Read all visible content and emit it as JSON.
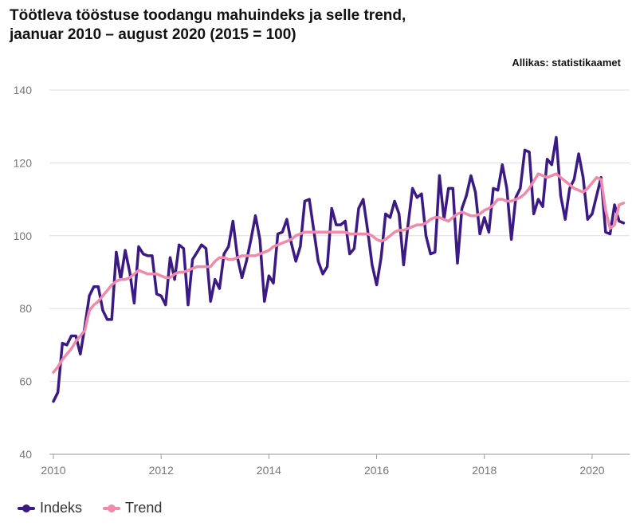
{
  "title_line1": "Töötleva tööstuse toodangu mahuindeks ja selle trend,",
  "title_line2": "jaanuar 2010 – august 2020 (2015 = 100)",
  "source": "Allikas: statistikaamet",
  "colors": {
    "indeks": "#3b1a86",
    "trend": "#f08aa8",
    "grid": "#dddddd"
  },
  "chart_data": {
    "type": "line",
    "title": "Töötleva tööstuse toodangu mahuindeks ja selle trend, jaanuar 2010 – august 2020 (2015 = 100)",
    "xlabel": "",
    "ylabel": "",
    "x_start": "2010-01",
    "x_frequency": "monthly",
    "ylim": [
      40,
      140
    ],
    "yticks": [
      "40",
      "60",
      "80",
      "100",
      "120",
      "140"
    ],
    "xticks": [
      "2010",
      "2012",
      "2014",
      "2016",
      "2018",
      "2020"
    ],
    "grid": true,
    "legend_position": "bottom-left",
    "series": [
      {
        "name": "Indeks",
        "values": [
          54.5,
          57,
          70.5,
          70,
          72.5,
          72.5,
          67.5,
          75,
          83.5,
          86,
          86,
          79.5,
          77,
          77,
          95.5,
          88,
          96,
          90,
          81.5,
          97,
          95,
          94.5,
          94.5,
          84,
          83.5,
          81,
          94,
          88,
          97.5,
          96.5,
          81,
          93.5,
          95.5,
          97.5,
          96.5,
          82,
          88,
          85.5,
          95,
          97,
          104,
          94,
          88.5,
          93,
          99,
          105.5,
          99,
          82,
          89,
          87,
          100.5,
          101,
          104.5,
          98,
          93,
          97,
          109.5,
          110,
          101.5,
          93,
          89.5,
          91.5,
          107.5,
          103,
          103,
          104,
          95,
          96.5,
          107.5,
          110,
          101.5,
          92,
          86.5,
          94,
          106,
          105,
          109.5,
          106,
          92,
          103,
          113,
          110.5,
          111.5,
          100,
          95,
          95.5,
          116.5,
          104.5,
          113,
          113,
          92.5,
          107.5,
          111,
          116.5,
          112,
          100.5,
          105,
          101,
          113,
          112.5,
          119.5,
          113,
          99,
          110.5,
          113,
          123.5,
          123,
          106,
          110,
          108,
          121,
          119.5,
          127,
          111,
          104.5,
          113,
          115.5,
          122.5,
          116,
          104.5,
          106,
          111,
          116,
          101,
          100.5,
          108.5,
          104,
          103.5
        ]
      },
      {
        "name": "Trend",
        "values": [
          62.5,
          64,
          66,
          67.5,
          69,
          71,
          72.5,
          74,
          79.5,
          81,
          82,
          83.5,
          85,
          86.5,
          87.5,
          88,
          88,
          88.5,
          89.5,
          90.5,
          90,
          89.5,
          89.5,
          89.5,
          89,
          88.5,
          88.5,
          89.5,
          90,
          90,
          90.5,
          91,
          91.5,
          91.5,
          91.5,
          91.5,
          93,
          94,
          94,
          93.5,
          93.5,
          94,
          94.5,
          94.5,
          94.5,
          94.5,
          95,
          95.5,
          96,
          97,
          97.5,
          98,
          98.5,
          99,
          100,
          100.5,
          101,
          101,
          101,
          101,
          101,
          101,
          101,
          101,
          101,
          101,
          100.5,
          100.5,
          100.5,
          100.5,
          100.5,
          100,
          99,
          98.5,
          99,
          100,
          101,
          101.5,
          101.5,
          102,
          102.5,
          103,
          103,
          103.5,
          104.5,
          105,
          105,
          104.5,
          104,
          105,
          106,
          106.5,
          106,
          105.5,
          105.5,
          106,
          107,
          107.5,
          108.5,
          110,
          110,
          109.5,
          109.5,
          110,
          110.5,
          111.5,
          113,
          115,
          117,
          116.5,
          116,
          116.5,
          117,
          116,
          115,
          114,
          113,
          112.5,
          112,
          113,
          114.5,
          116,
          115.5,
          107,
          102,
          103,
          108.5,
          109
        ]
      }
    ]
  }
}
